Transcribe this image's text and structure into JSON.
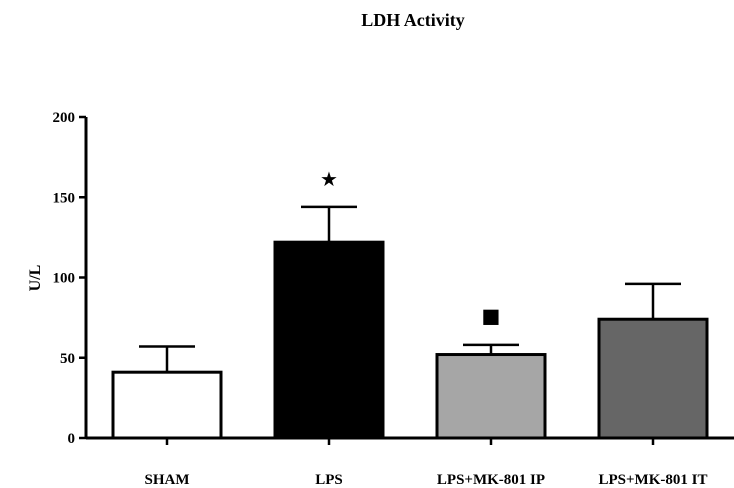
{
  "chart_data": {
    "type": "bar",
    "title": "LDH Activity",
    "xlabel": "",
    "ylabel": "U/L",
    "ylim": [
      0,
      200
    ],
    "yticks": [
      0,
      50,
      100,
      150,
      200
    ],
    "grid": false,
    "categories": [
      "SHAM",
      "LPS",
      "LPS+MK-801 IP",
      "LPS+MK-801 IT"
    ],
    "values": [
      41,
      122,
      52,
      74
    ],
    "errors": [
      16,
      22,
      6,
      22
    ],
    "colors": [
      "#ffffff",
      "#000000",
      "#a6a6a6",
      "#666666"
    ],
    "annotations": [
      {
        "category": "LPS",
        "text": "★",
        "y": 162
      },
      {
        "category": "LPS+MK-801 IP",
        "text": "■",
        "y": 77
      }
    ]
  }
}
